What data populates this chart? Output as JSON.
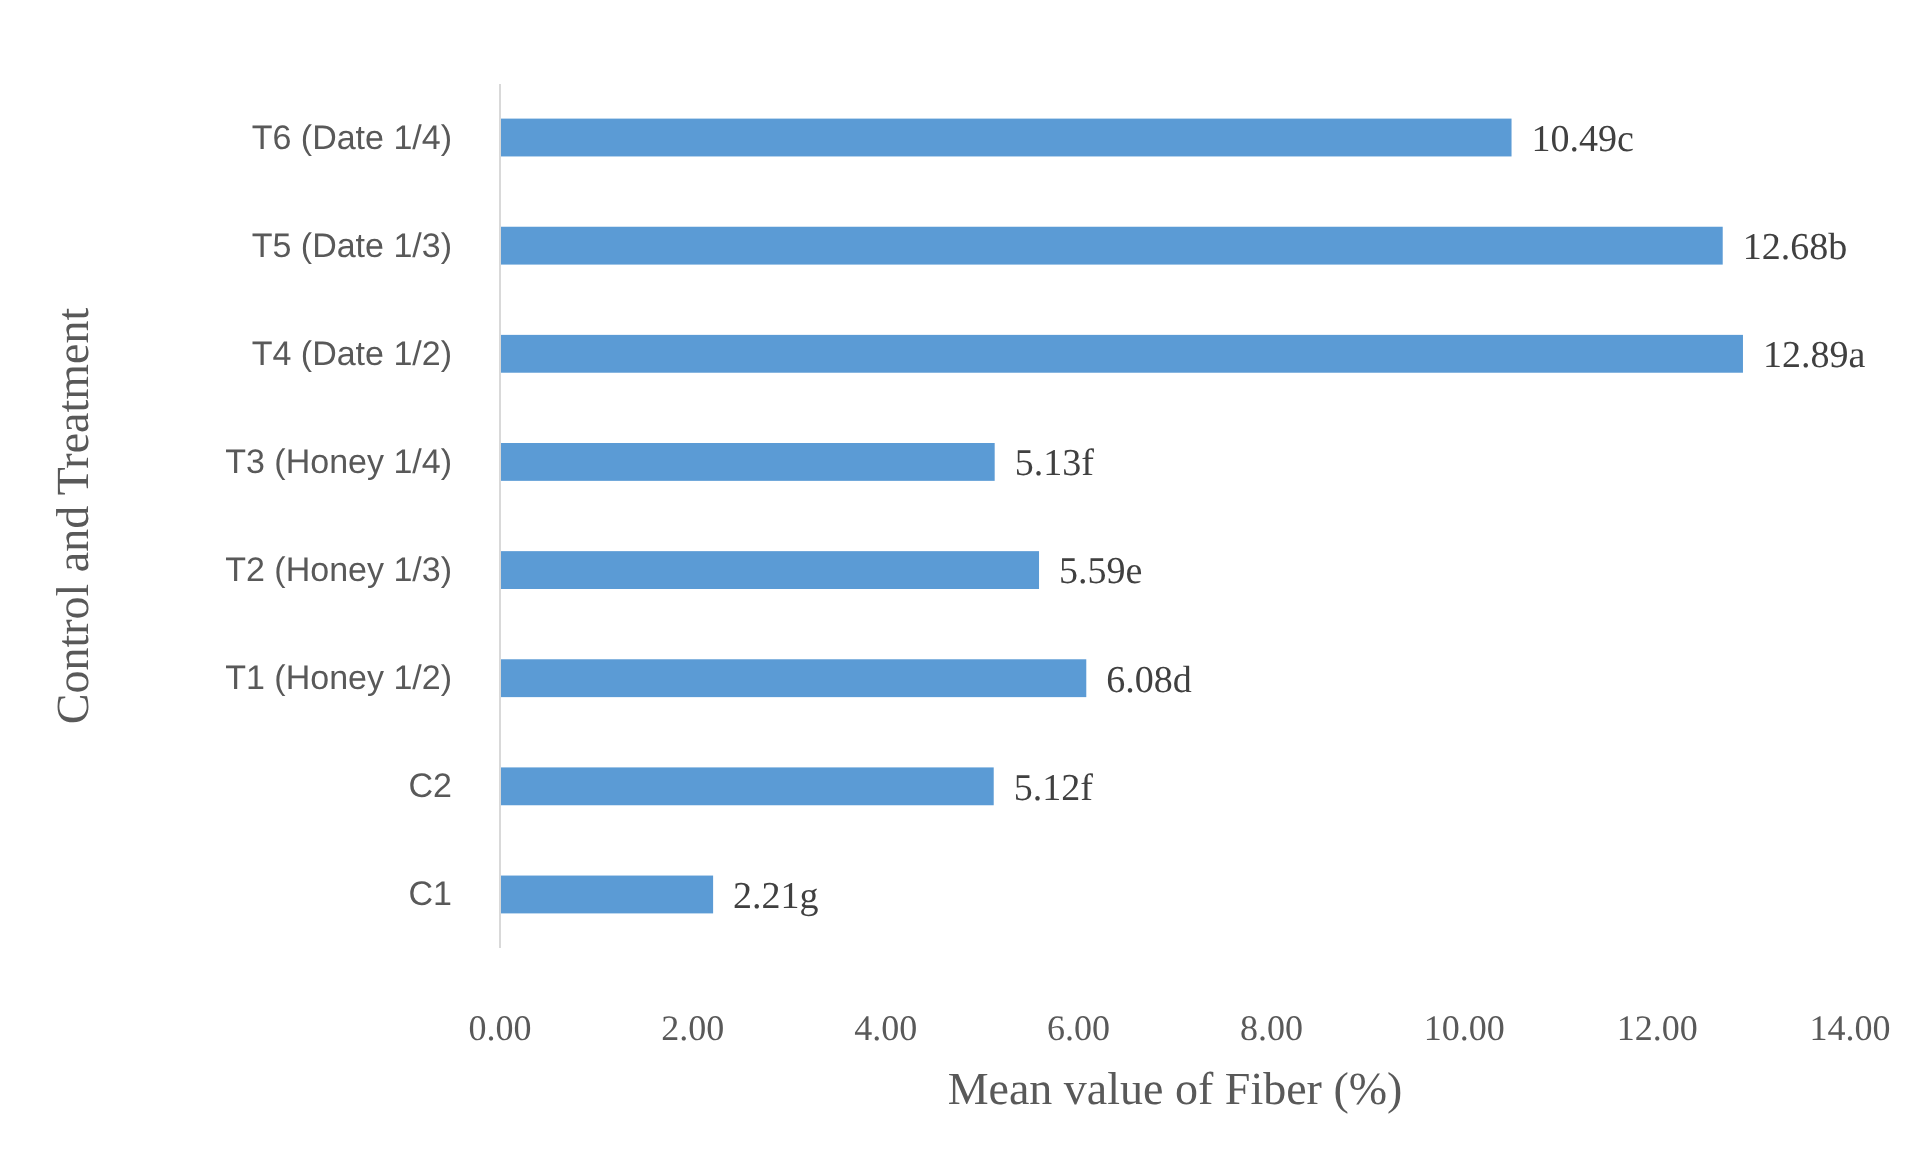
{
  "chart_data": {
    "type": "bar",
    "orientation": "horizontal",
    "xlabel": "Mean value of Fiber (%)",
    "ylabel": "Control and Treatment",
    "categories": [
      "T6 (Date 1/4)",
      "T5 (Date 1/3)",
      "T4 (Date 1/2)",
      "T3 (Honey 1/4)",
      "T2 (Honey 1/3)",
      "T1 (Honey 1/2)",
      "C2",
      "C1"
    ],
    "values": [
      10.49,
      12.68,
      12.89,
      5.13,
      5.59,
      6.08,
      5.12,
      2.21
    ],
    "value_labels": [
      "10.49c",
      "12.68b",
      "12.89a",
      "5.13f",
      "5.59e",
      "6.08d",
      "5.12f",
      "2.21g"
    ],
    "color": "#5b9bd5",
    "xlim": [
      0,
      14
    ],
    "xticks": [
      {
        "value": 0,
        "label": "0.00"
      },
      {
        "value": 2,
        "label": "2.00"
      },
      {
        "value": 4,
        "label": "4.00"
      },
      {
        "value": 6,
        "label": "6.00"
      },
      {
        "value": 8,
        "label": "8.00"
      },
      {
        "value": 10,
        "label": "10.00"
      },
      {
        "value": 12,
        "label": "12.00"
      },
      {
        "value": 14,
        "label": "14.00"
      }
    ]
  }
}
